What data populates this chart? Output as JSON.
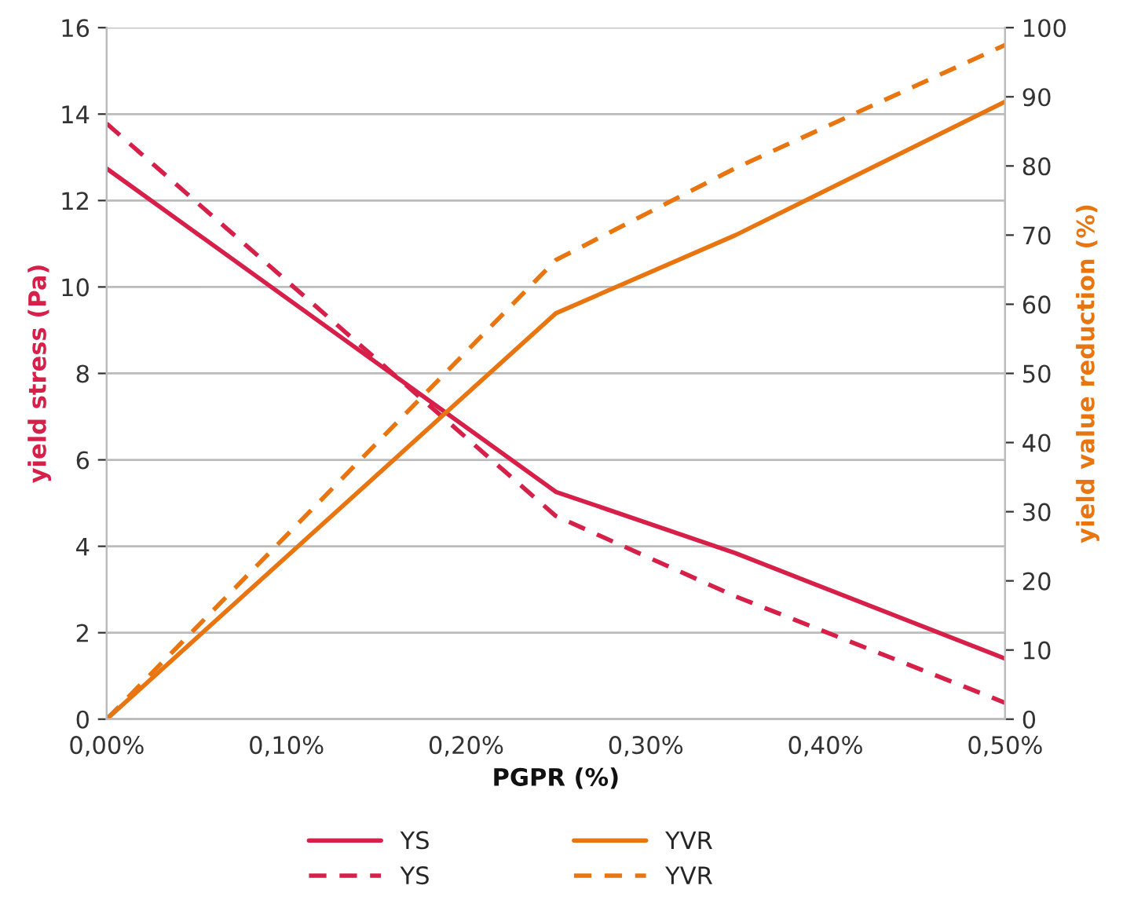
{
  "chart_data": {
    "type": "line",
    "xlabel": "PGPR (%)",
    "ylabel": "yield stress (Pa)",
    "y2label": "yield value reduction (%)",
    "x": [
      0,
      0.25,
      0.35,
      0.5
    ],
    "xlim": [
      0,
      0.5
    ],
    "xticks": [
      {
        "value": 0,
        "label": "0,00%"
      },
      {
        "value": 0.1,
        "label": "0,10%"
      },
      {
        "value": 0.2,
        "label": "0,20%"
      },
      {
        "value": 0.3,
        "label": "0,30%"
      },
      {
        "value": 0.4,
        "label": "0,40%"
      },
      {
        "value": 0.5,
        "label": "0,50%"
      }
    ],
    "ylim": [
      0,
      16
    ],
    "yticks": [
      0,
      2,
      4,
      6,
      8,
      10,
      12,
      14,
      16
    ],
    "y2lim": [
      0,
      100
    ],
    "y2ticks": [
      0,
      10,
      20,
      30,
      40,
      50,
      60,
      70,
      80,
      90,
      100
    ],
    "grid": "y",
    "legend": "bottom",
    "series": [
      {
        "name": "YS",
        "color": "#d6204a",
        "line_style": "solid",
        "values": [
          12.74,
          5.26,
          3.84,
          1.4
        ]
      },
      {
        "name": "YVR",
        "color": "#e8750f",
        "line_style": "solid",
        "axis": "y2",
        "values": [
          0,
          58.7,
          70.0,
          89.3
        ]
      },
      {
        "name": "YS",
        "color": "#d6204a",
        "line_style": "dashed",
        "values": [
          13.78,
          4.7,
          2.84,
          0.38
        ]
      },
      {
        "name": "YVR",
        "color": "#e8750f",
        "line_style": "dashed",
        "axis": "y2",
        "values": [
          0,
          66.4,
          79.7,
          97.5
        ]
      }
    ]
  }
}
